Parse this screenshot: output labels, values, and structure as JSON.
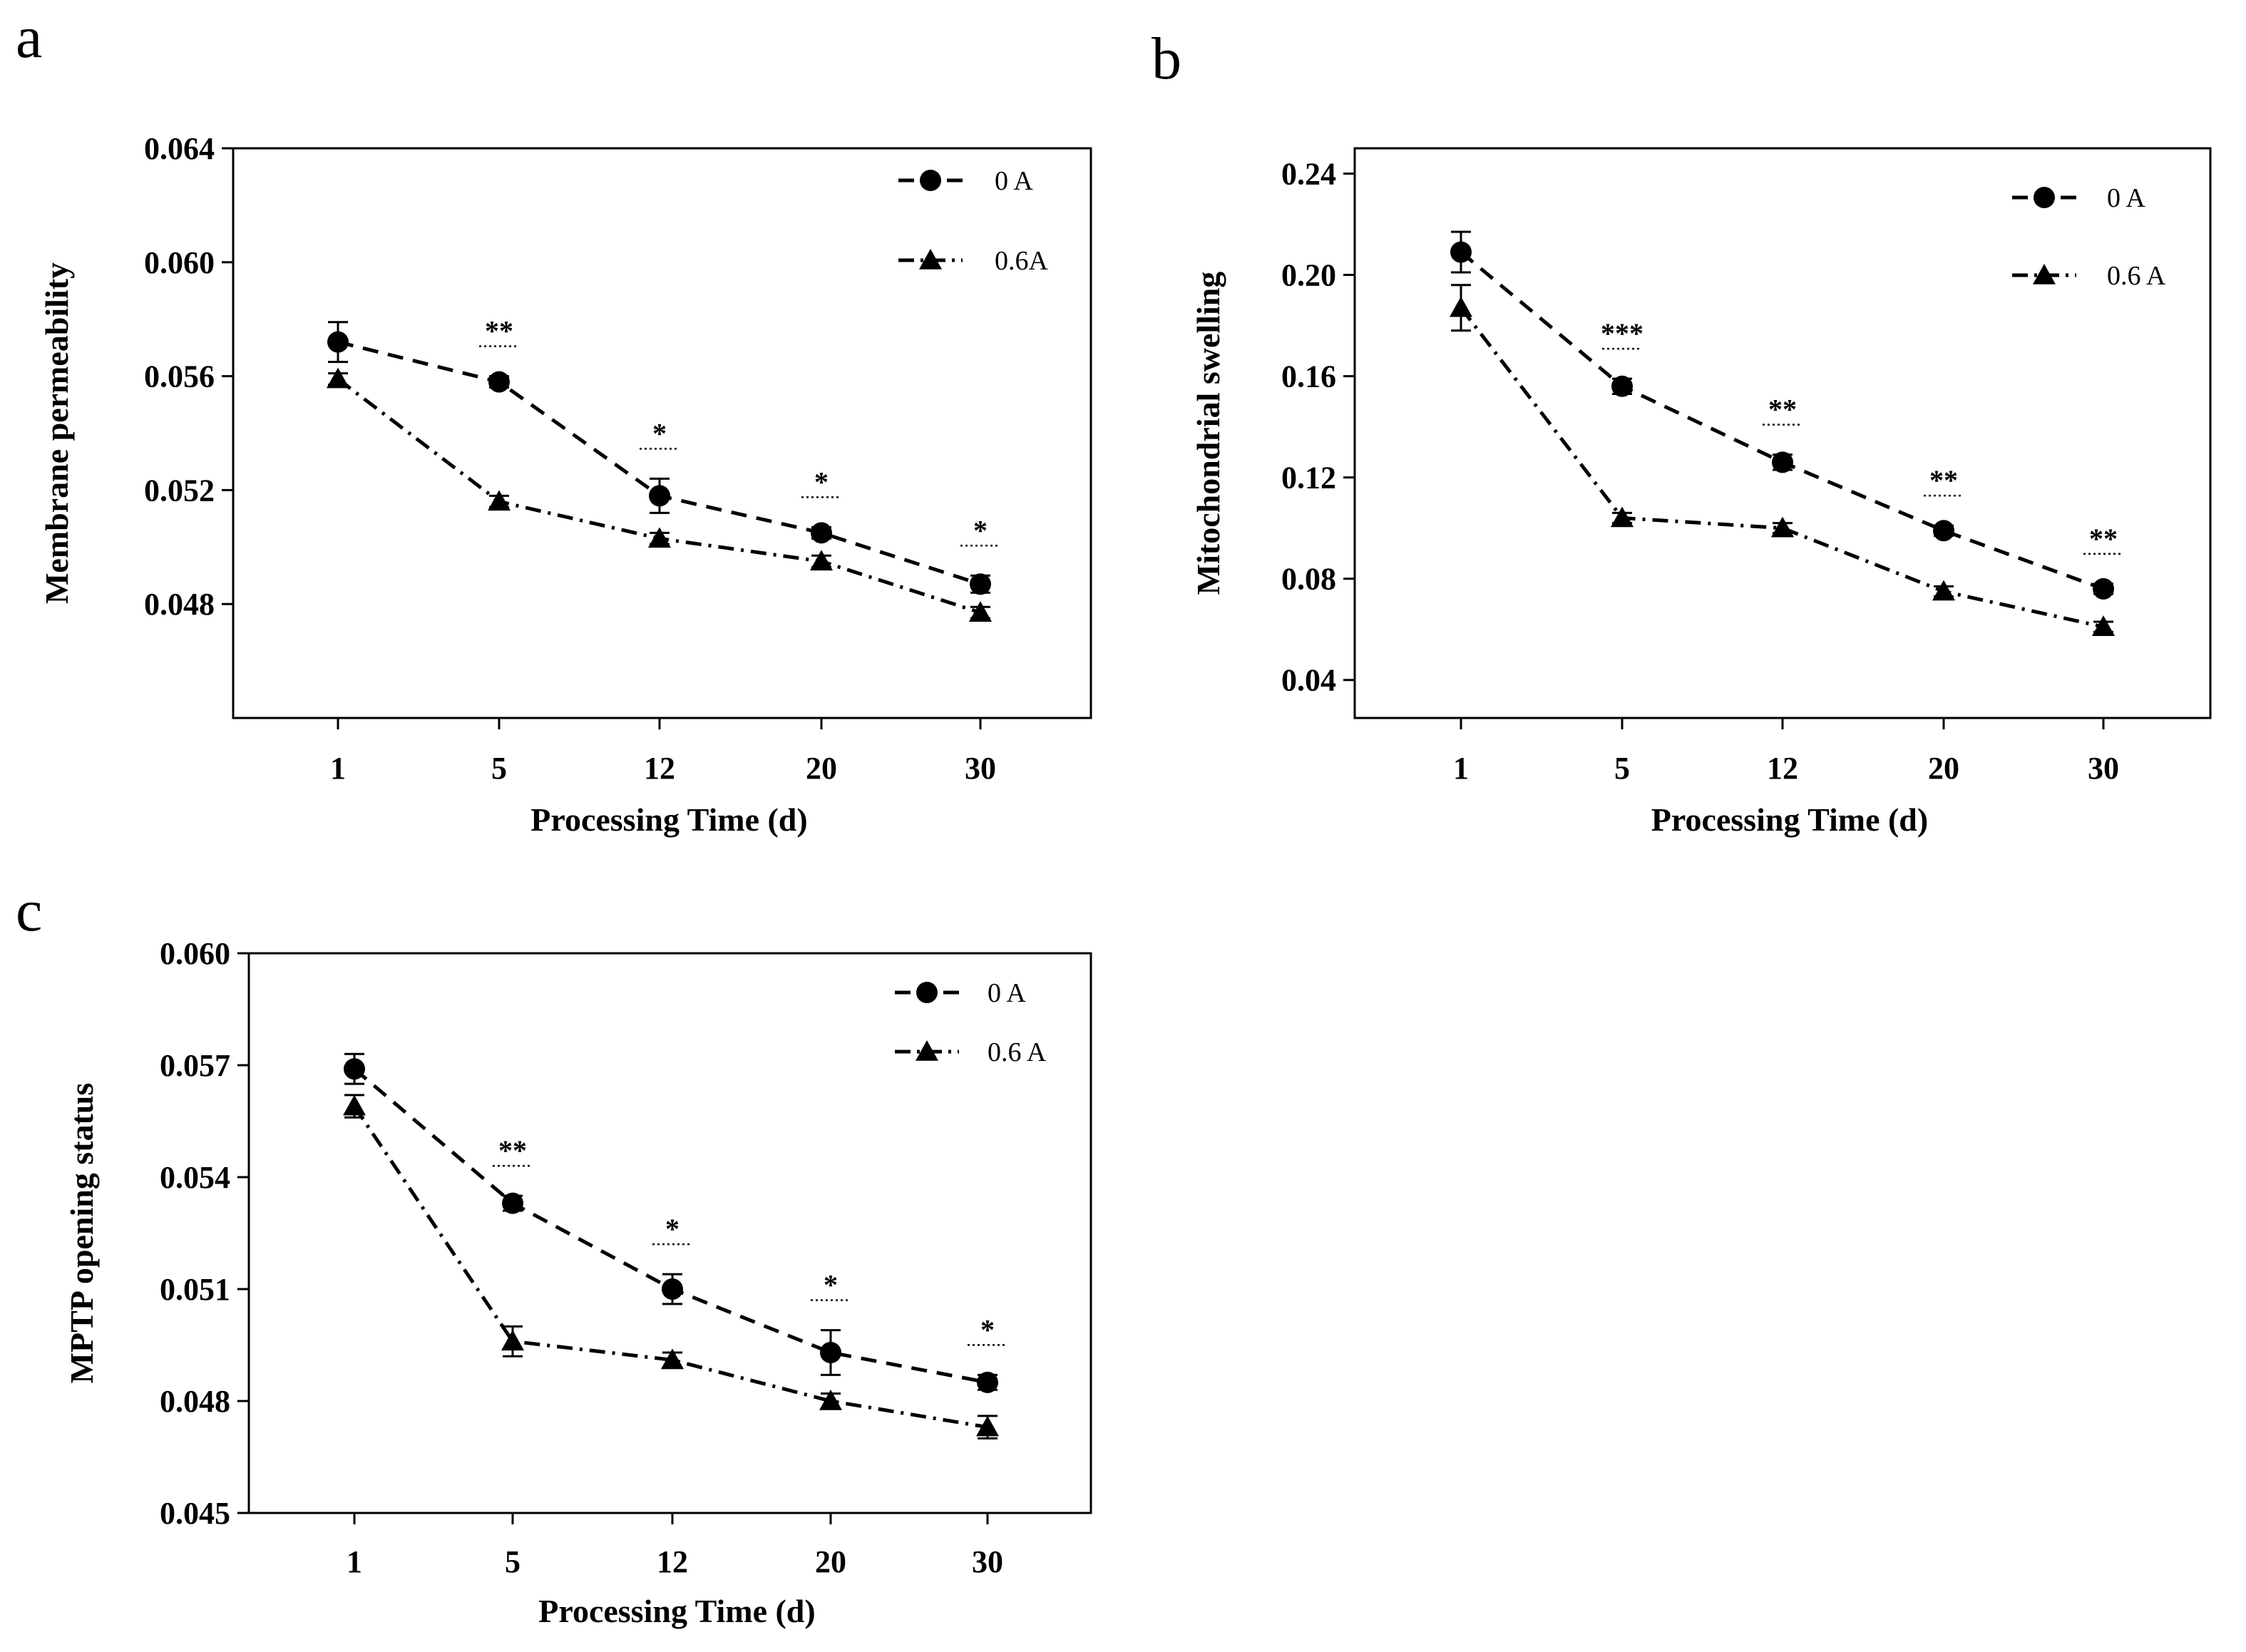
{
  "chart_data": [
    {
      "type": "line",
      "panel_label": "a",
      "x_labels": [
        "1",
        "5",
        "12",
        "20",
        "30"
      ],
      "xlabel": "Processing Time (d)",
      "ylabel": "Membrane permeability",
      "ylim": [
        0.044,
        0.064
      ],
      "yticks": [
        "0.064",
        "0.060",
        "0.056",
        "0.052",
        "0.048"
      ],
      "ytick_values": [
        0.064,
        0.06,
        0.056,
        0.052,
        0.048
      ],
      "series": [
        {
          "name": "0 A",
          "marker": "circle",
          "line": "dash",
          "values": [
            0.0572,
            0.0558,
            0.0518,
            0.0505,
            0.0487
          ],
          "errors": [
            0.0007,
            0.0002,
            0.0006,
            0.0002,
            0.0003
          ]
        },
        {
          "name": "0.6A",
          "marker": "triangle",
          "line": "dashdot",
          "values": [
            0.0559,
            0.0516,
            0.0503,
            0.0495,
            0.0477
          ],
          "errors": [
            0.0002,
            0.0002,
            0.0002,
            0.0002,
            0.0002
          ]
        }
      ],
      "significance": [
        "",
        "**",
        "*",
        "*",
        "*"
      ]
    },
    {
      "type": "line",
      "panel_label": "b",
      "x_labels": [
        "1",
        "5",
        "12",
        "20",
        "30"
      ],
      "xlabel": "Processing Time (d)",
      "ylabel": "Mitochondrial swelling",
      "ylim": [
        0.025,
        0.25
      ],
      "yticks": [
        "0.24",
        "0.20",
        "0.16",
        "0.12",
        "0.08",
        "0.04"
      ],
      "ytick_values": [
        0.24,
        0.2,
        0.16,
        0.12,
        0.08,
        0.04
      ],
      "series": [
        {
          "name": "0 A",
          "marker": "circle",
          "line": "dash",
          "values": [
            0.209,
            0.156,
            0.126,
            0.099,
            0.076
          ],
          "errors": [
            0.008,
            0.003,
            0.003,
            0.002,
            0.002
          ]
        },
        {
          "name": "0.6 A",
          "marker": "triangle",
          "line": "dashdot",
          "values": [
            0.187,
            0.104,
            0.1,
            0.075,
            0.061
          ],
          "errors": [
            0.009,
            0.002,
            0.002,
            0.002,
            0.002
          ]
        }
      ],
      "significance": [
        "",
        "***",
        "**",
        "**",
        "**"
      ]
    },
    {
      "type": "line",
      "panel_label": "c",
      "x_labels": [
        "1",
        "5",
        "12",
        "20",
        "30"
      ],
      "xlabel": "Processing Time (d)",
      "ylabel": "MPTP opening status",
      "ylim": [
        0.045,
        0.06
      ],
      "yticks": [
        "0.060",
        "0.057",
        "0.054",
        "0.051",
        "0.048",
        "0.045"
      ],
      "ytick_values": [
        0.06,
        0.057,
        0.054,
        0.051,
        0.048,
        0.045
      ],
      "series": [
        {
          "name": "0 A",
          "marker": "circle",
          "line": "dash",
          "values": [
            0.0569,
            0.0533,
            0.051,
            0.0493,
            0.0485
          ],
          "errors": [
            0.0004,
            0.0002,
            0.0004,
            0.0006,
            0.0002
          ]
        },
        {
          "name": "0.6 A",
          "marker": "triangle",
          "line": "dashdot",
          "values": [
            0.0559,
            0.0496,
            0.0491,
            0.048,
            0.0473
          ],
          "errors": [
            0.0003,
            0.0004,
            0.0002,
            0.0002,
            0.0003
          ]
        }
      ],
      "significance": [
        "",
        "**",
        "*",
        "*",
        "*"
      ]
    }
  ]
}
